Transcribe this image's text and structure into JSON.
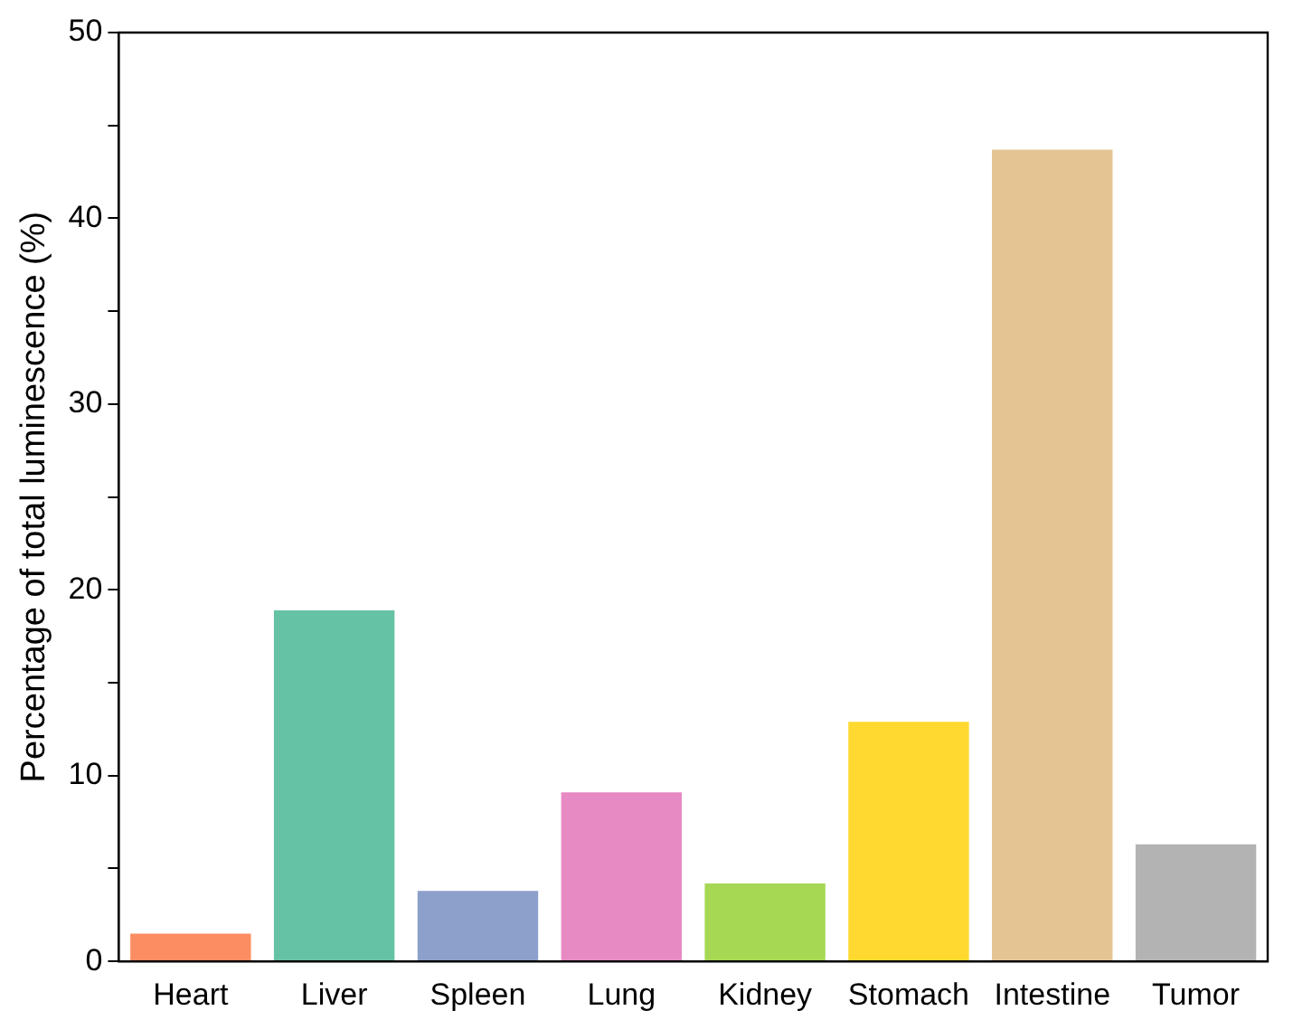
{
  "chart_data": {
    "type": "bar",
    "ylabel": "Percentage of total luminescence (%)",
    "categories": [
      "Heart",
      "Liver",
      "Spleen",
      "Lung",
      "Kidney",
      "Stomach",
      "Intestine",
      "Tumor"
    ],
    "values": [
      1.5,
      18.9,
      3.8,
      9.1,
      4.2,
      12.9,
      43.7,
      6.3
    ],
    "colors": [
      "#fc8d62",
      "#66c2a5",
      "#8da0cb",
      "#e78ac3",
      "#a6d854",
      "#ffd92f",
      "#e5c494",
      "#b3b3b3"
    ],
    "ylim": [
      0,
      50
    ],
    "yticks": [
      0,
      {
        "value": 5,
        "label": null
      },
      10,
      {
        "value": 15,
        "label": null
      },
      20,
      {
        "value": 25,
        "label": null
      },
      30,
      {
        "value": 35,
        "label": null
      },
      40,
      {
        "value": 45,
        "label": null
      },
      50
    ],
    "grid": false,
    "legend": false
  }
}
